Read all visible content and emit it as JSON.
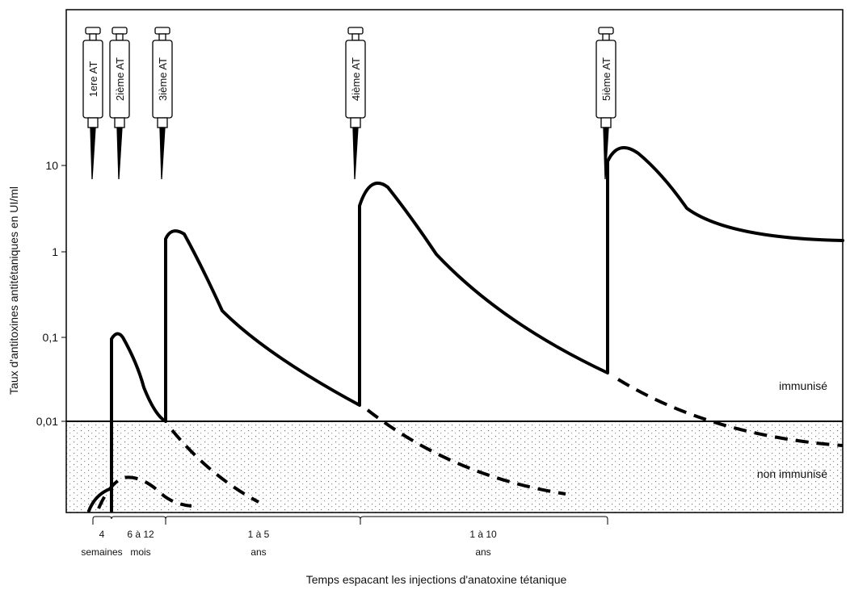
{
  "y_axis": {
    "label": "Taux d'antitoxines antitétaniques en UI/ml",
    "ticks": [
      "10",
      "1",
      "0,1",
      "0,01"
    ]
  },
  "injections": [
    "1ere AT",
    "2ième AT",
    "3ième AT",
    "4ième AT",
    "5ième AT"
  ],
  "zones": {
    "immune": "immunisé",
    "non_immune": "non immunisé"
  },
  "intervals": [
    {
      "amount": "4",
      "unit": "semaines"
    },
    {
      "amount": "6 à 12",
      "unit": "mois"
    },
    {
      "amount": "1 à 5",
      "unit": "ans"
    },
    {
      "amount": "1 à 10",
      "unit": "ans"
    }
  ],
  "x_axis": {
    "title": "Temps espacant les injections d'anatoxine tétanique"
  }
}
